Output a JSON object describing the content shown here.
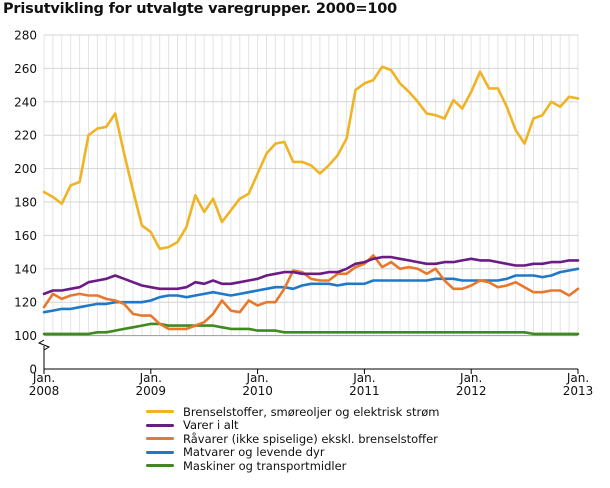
{
  "title": "Prisutvikling for utvalgte varegrupper. 2000=100",
  "chart_data": {
    "type": "line",
    "title": "Prisutvikling for utvalgte varegrupper. 2000=100",
    "xlabel": "",
    "ylabel": "",
    "x_start": "2008-01",
    "x_end": "2013-01",
    "ylim": [
      0,
      280
    ],
    "yticks": [
      0,
      100,
      120,
      140,
      160,
      180,
      200,
      220,
      240,
      260,
      280
    ],
    "axis_break": "between 0 and 100",
    "grid": true,
    "legend_position": "bottom",
    "x_tick_labels": [
      {
        "month": "2008-01",
        "line1": "Jan.",
        "line2": "2008"
      },
      {
        "month": "2009-01",
        "line1": "Jan.",
        "line2": "2009"
      },
      {
        "month": "2010-01",
        "line1": "Jan.",
        "line2": "2010"
      },
      {
        "month": "2011-01",
        "line1": "Jan.",
        "line2": "2011"
      },
      {
        "month": "2012-01",
        "line1": "Jan.",
        "line2": "2012"
      },
      {
        "month": "2013-01",
        "line1": "Jan.",
        "line2": "2013"
      }
    ],
    "series": [
      {
        "name": "Brenselstoffer, smøreoljer og elektrisk strøm",
        "color": "#f0b323",
        "values": [
          186,
          183,
          179,
          190,
          192,
          220,
          224,
          225,
          233,
          209,
          187,
          166,
          162,
          152,
          153,
          156,
          165,
          184,
          174,
          182,
          168,
          175,
          182,
          185,
          197,
          209,
          215,
          216,
          204,
          204,
          202,
          197,
          202,
          208,
          218,
          247,
          251,
          253,
          261,
          259,
          251,
          246,
          240,
          233,
          232,
          230,
          241,
          236,
          246,
          258,
          248,
          248,
          237,
          223,
          215,
          230,
          232,
          240,
          237,
          243,
          242
        ]
      },
      {
        "name": "Varer i alt",
        "color": "#6a1b84",
        "values": [
          125,
          127,
          127,
          128,
          129,
          132,
          133,
          134,
          136,
          134,
          132,
          130,
          129,
          128,
          128,
          128,
          129,
          132,
          131,
          133,
          131,
          131,
          132,
          133,
          134,
          136,
          137,
          138,
          138,
          137,
          137,
          137,
          138,
          138,
          140,
          143,
          144,
          146,
          147,
          147,
          146,
          145,
          144,
          143,
          143,
          144,
          144,
          145,
          146,
          145,
          145,
          144,
          143,
          142,
          142,
          143,
          143,
          144,
          144,
          145,
          145
        ]
      },
      {
        "name": "Råvarer (ikke spiselige) ekskl. brenselstoffer",
        "color": "#e8782b",
        "values": [
          117,
          125,
          122,
          124,
          125,
          124,
          124,
          122,
          121,
          119,
          113,
          112,
          112,
          107,
          104,
          104,
          104,
          106,
          108,
          113,
          121,
          115,
          114,
          121,
          118,
          120,
          120,
          128,
          139,
          138,
          134,
          133,
          133,
          137,
          137,
          141,
          143,
          148,
          141,
          144,
          140,
          141,
          140,
          137,
          140,
          133,
          128,
          128,
          130,
          133,
          132,
          129,
          130,
          132,
          129,
          126,
          126,
          127,
          127,
          124,
          128
        ]
      },
      {
        "name": "Matvarer og levende dyr",
        "color": "#1f78c8",
        "values": [
          114,
          115,
          116,
          116,
          117,
          118,
          119,
          119,
          120,
          120,
          120,
          120,
          121,
          123,
          124,
          124,
          123,
          124,
          125,
          126,
          125,
          124,
          125,
          126,
          127,
          128,
          129,
          129,
          128,
          130,
          131,
          131,
          131,
          130,
          131,
          131,
          131,
          133,
          133,
          133,
          133,
          133,
          133,
          133,
          134,
          134,
          134,
          133,
          133,
          133,
          133,
          133,
          134,
          136,
          136,
          136,
          135,
          136,
          138,
          139,
          140
        ]
      },
      {
        "name": "Maskiner og transportmidler",
        "color": "#3f8a1f",
        "values": [
          101,
          101,
          101,
          101,
          101,
          101,
          102,
          102,
          103,
          104,
          105,
          106,
          107,
          107,
          106,
          106,
          106,
          106,
          106,
          106,
          105,
          104,
          104,
          104,
          103,
          103,
          103,
          102,
          102,
          102,
          102,
          102,
          102,
          102,
          102,
          102,
          102,
          102,
          102,
          102,
          102,
          102,
          102,
          102,
          102,
          102,
          102,
          102,
          102,
          102,
          102,
          102,
          102,
          102,
          102,
          101,
          101,
          101,
          101,
          101,
          101
        ]
      }
    ]
  }
}
